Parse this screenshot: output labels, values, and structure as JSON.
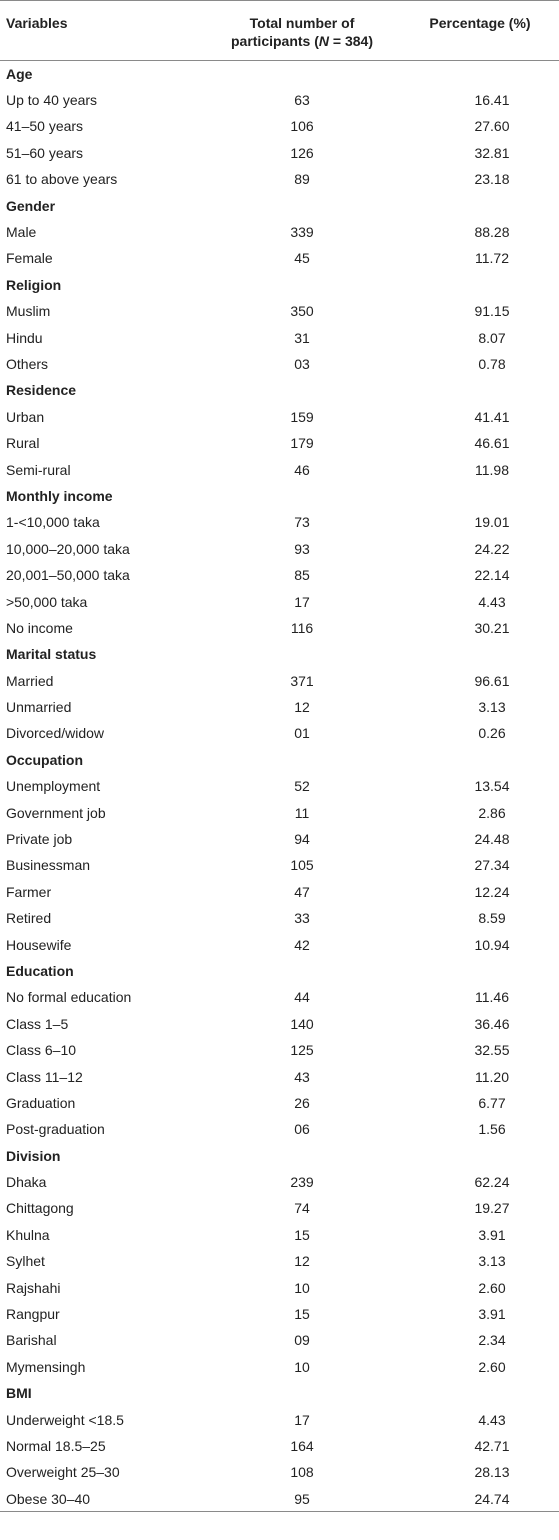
{
  "table": {
    "headers": {
      "variables": "Variables",
      "total_line1": "Total number of",
      "total_line2_prefix": "participants (",
      "total_line2_n": "N",
      "total_line2_suffix": " = 384)",
      "percentage": "Percentage (%)"
    },
    "sections": [
      {
        "title": "Age",
        "rows": [
          [
            "Up to 40 years",
            "63",
            "16.41"
          ],
          [
            "41–50 years",
            "106",
            "27.60"
          ],
          [
            "51–60 years",
            "126",
            "32.81"
          ],
          [
            "61 to above years",
            "89",
            "23.18"
          ]
        ]
      },
      {
        "title": "Gender",
        "rows": [
          [
            "Male",
            "339",
            "88.28"
          ],
          [
            "Female",
            "45",
            "11.72"
          ]
        ]
      },
      {
        "title": "Religion",
        "rows": [
          [
            "Muslim",
            "350",
            "91.15"
          ],
          [
            "Hindu",
            "31",
            "8.07"
          ],
          [
            "Others",
            "03",
            "0.78"
          ]
        ]
      },
      {
        "title": "Residence",
        "rows": [
          [
            "Urban",
            "159",
            "41.41"
          ],
          [
            "Rural",
            "179",
            "46.61"
          ],
          [
            "Semi-rural",
            "46",
            "11.98"
          ]
        ]
      },
      {
        "title": "Monthly income",
        "rows": [
          [
            "1-<10,000 taka",
            "73",
            "19.01"
          ],
          [
            "10,000–20,000 taka",
            "93",
            "24.22"
          ],
          [
            "20,001–50,000 taka",
            "85",
            "22.14"
          ],
          [
            ">50,000 taka",
            "17",
            "4.43"
          ],
          [
            "No income",
            "116",
            "30.21"
          ]
        ]
      },
      {
        "title": "Marital status",
        "rows": [
          [
            "Married",
            "371",
            "96.61"
          ],
          [
            "Unmarried",
            "12",
            "3.13"
          ],
          [
            "Divorced/widow",
            "01",
            "0.26"
          ]
        ]
      },
      {
        "title": "Occupation",
        "rows": [
          [
            "Unemployment",
            "52",
            "13.54"
          ],
          [
            "Government job",
            "11",
            "2.86"
          ],
          [
            "Private job",
            "94",
            "24.48"
          ],
          [
            "Businessman",
            "105",
            "27.34"
          ],
          [
            "Farmer",
            "47",
            "12.24"
          ],
          [
            "Retired",
            "33",
            "8.59"
          ],
          [
            "Housewife",
            "42",
            "10.94"
          ]
        ]
      },
      {
        "title": "Education",
        "rows": [
          [
            "No formal education",
            "44",
            "11.46"
          ],
          [
            "Class 1–5",
            "140",
            "36.46"
          ],
          [
            "Class 6–10",
            "125",
            "32.55"
          ],
          [
            "Class 11–12",
            "43",
            "11.20"
          ],
          [
            "Graduation",
            "26",
            "6.77"
          ],
          [
            "Post-graduation",
            "06",
            "1.56"
          ]
        ]
      },
      {
        "title": "Division",
        "rows": [
          [
            "Dhaka",
            "239",
            "62.24"
          ],
          [
            "Chittagong",
            "74",
            "19.27"
          ],
          [
            "Khulna",
            "15",
            "3.91"
          ],
          [
            "Sylhet",
            "12",
            "3.13"
          ],
          [
            "Rajshahi",
            "10",
            "2.60"
          ],
          [
            "Rangpur",
            "15",
            "3.91"
          ],
          [
            "Barishal",
            "09",
            "2.34"
          ],
          [
            "Mymensingh",
            "10",
            "2.60"
          ]
        ]
      },
      {
        "title": "BMI",
        "rows": [
          [
            "Underweight <18.5",
            "17",
            "4.43"
          ],
          [
            "Normal 18.5–25",
            "164",
            "42.71"
          ],
          [
            "Overweight 25–30",
            "108",
            "28.13"
          ],
          [
            "Obese 30–40",
            "95",
            "24.74"
          ]
        ]
      }
    ]
  }
}
